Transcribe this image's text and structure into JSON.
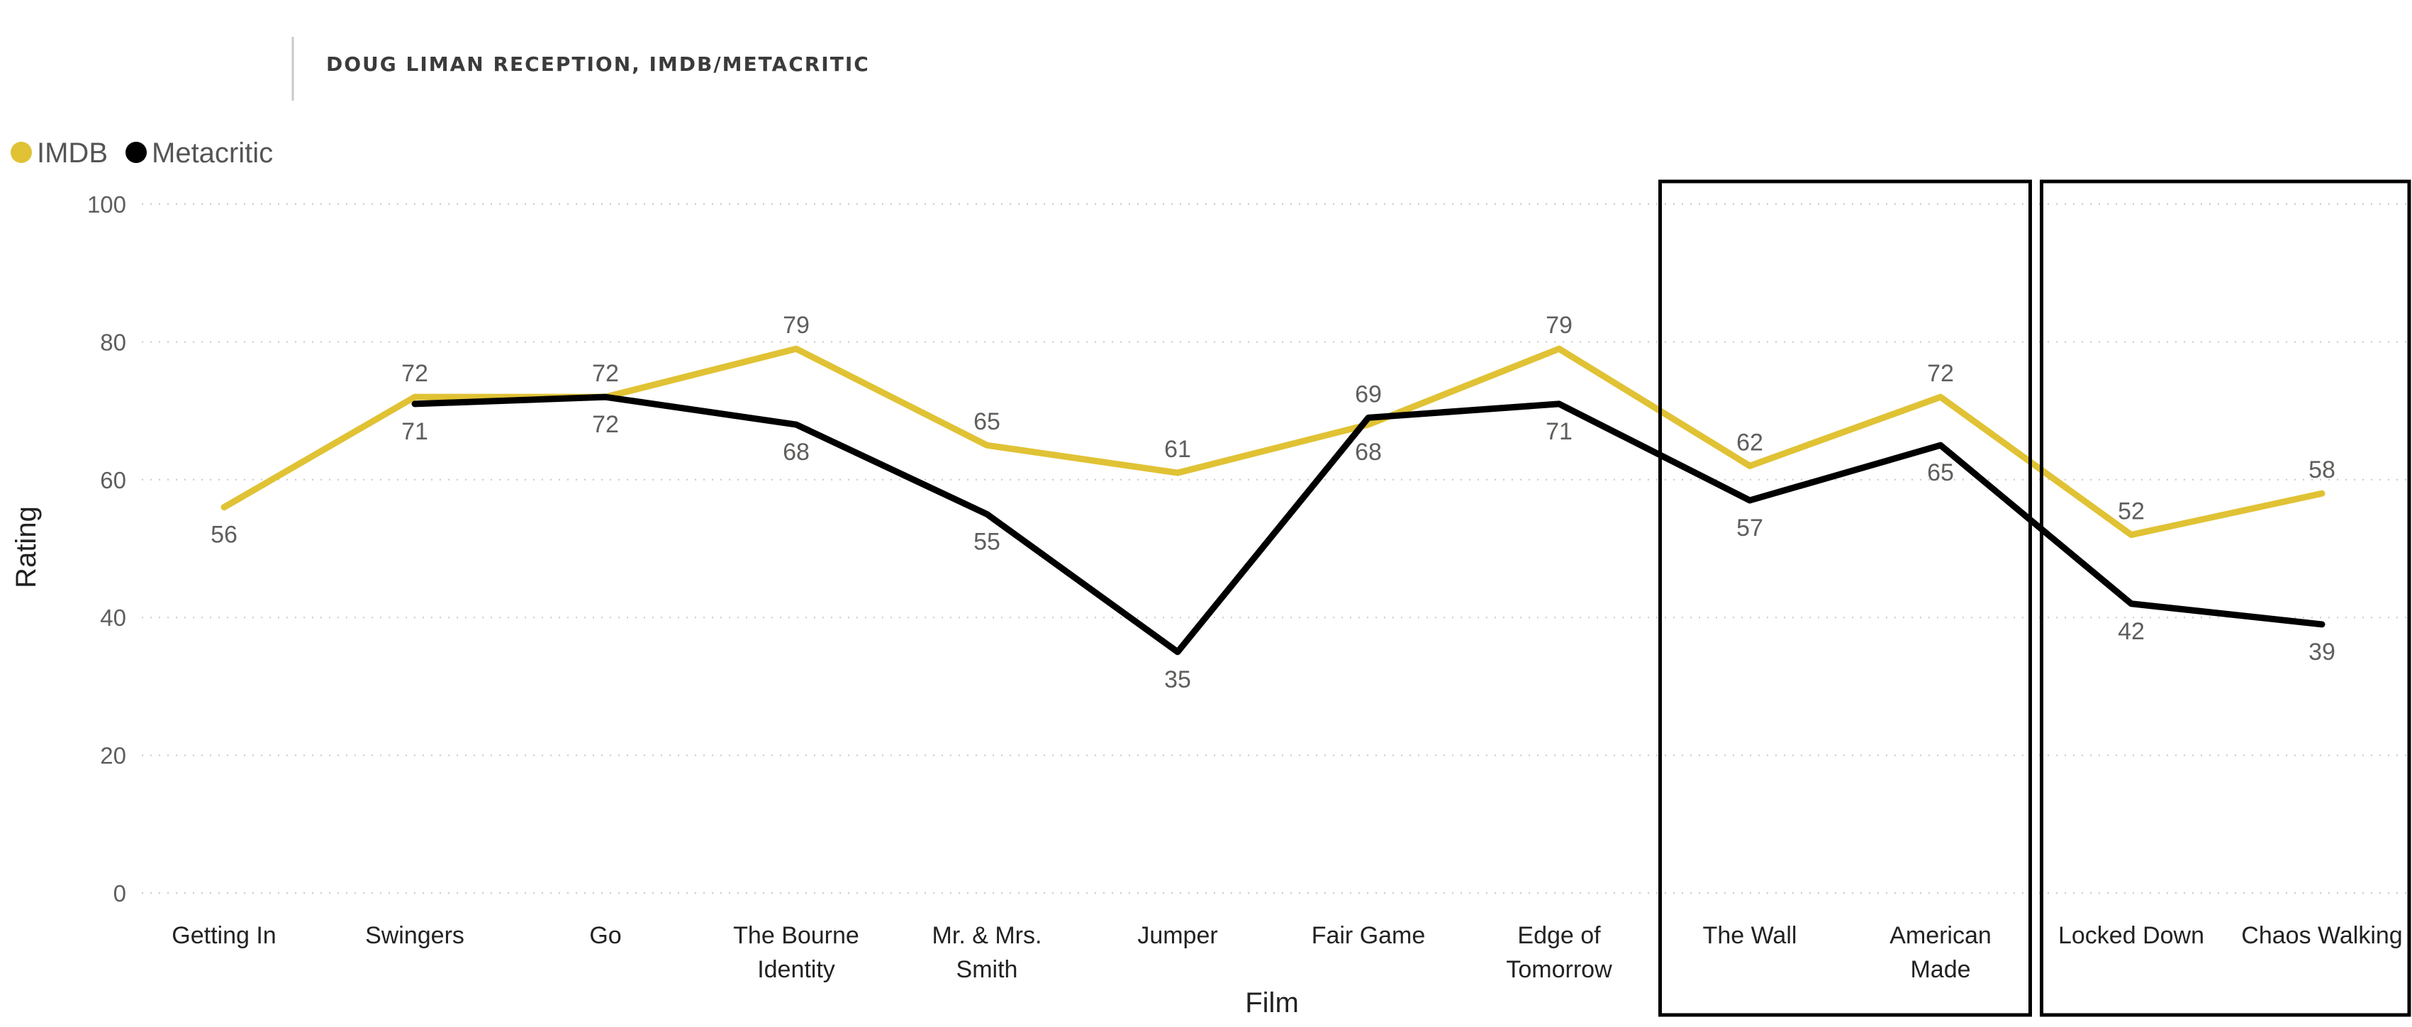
{
  "chart_data": {
    "type": "line",
    "title": "DOUG LIMAN RECEPTION, IMDB/METACRITIC",
    "xlabel": "Film",
    "ylabel": "Rating",
    "ylim": [
      0,
      100
    ],
    "yticks": [
      0,
      20,
      40,
      60,
      80,
      100
    ],
    "grid": true,
    "legend_position": "top-left",
    "categories": [
      "Getting In",
      "Swingers",
      "Go",
      "The Bourne Identity",
      "Mr. & Mrs. Smith",
      "Jumper",
      "Fair Game",
      "Edge of Tomorrow",
      "The Wall",
      "American Made",
      "Locked Down",
      "Chaos Walking"
    ],
    "category_lines": [
      [
        "Getting In"
      ],
      [
        "Swingers"
      ],
      [
        "Go"
      ],
      [
        "The Bourne",
        "Identity"
      ],
      [
        "Mr. & Mrs.",
        "Smith"
      ],
      [
        "Jumper"
      ],
      [
        "Fair Game"
      ],
      [
        "Edge of",
        "Tomorrow"
      ],
      [
        "The Wall"
      ],
      [
        "American",
        "Made"
      ],
      [
        "Locked Down"
      ],
      [
        "Chaos Walking"
      ]
    ],
    "series": [
      {
        "name": "IMDB",
        "color": "#e0c234",
        "values": [
          56,
          72,
          72,
          79,
          65,
          61,
          68,
          79,
          62,
          72,
          52,
          58
        ]
      },
      {
        "name": "Metacritic",
        "color": "#000000",
        "values": [
          null,
          71,
          72,
          68,
          55,
          35,
          69,
          71,
          57,
          65,
          42,
          39
        ]
      }
    ],
    "highlight_groups": [
      [
        "The Wall",
        "American Made"
      ],
      [
        "Locked Down",
        "Chaos Walking"
      ]
    ]
  }
}
